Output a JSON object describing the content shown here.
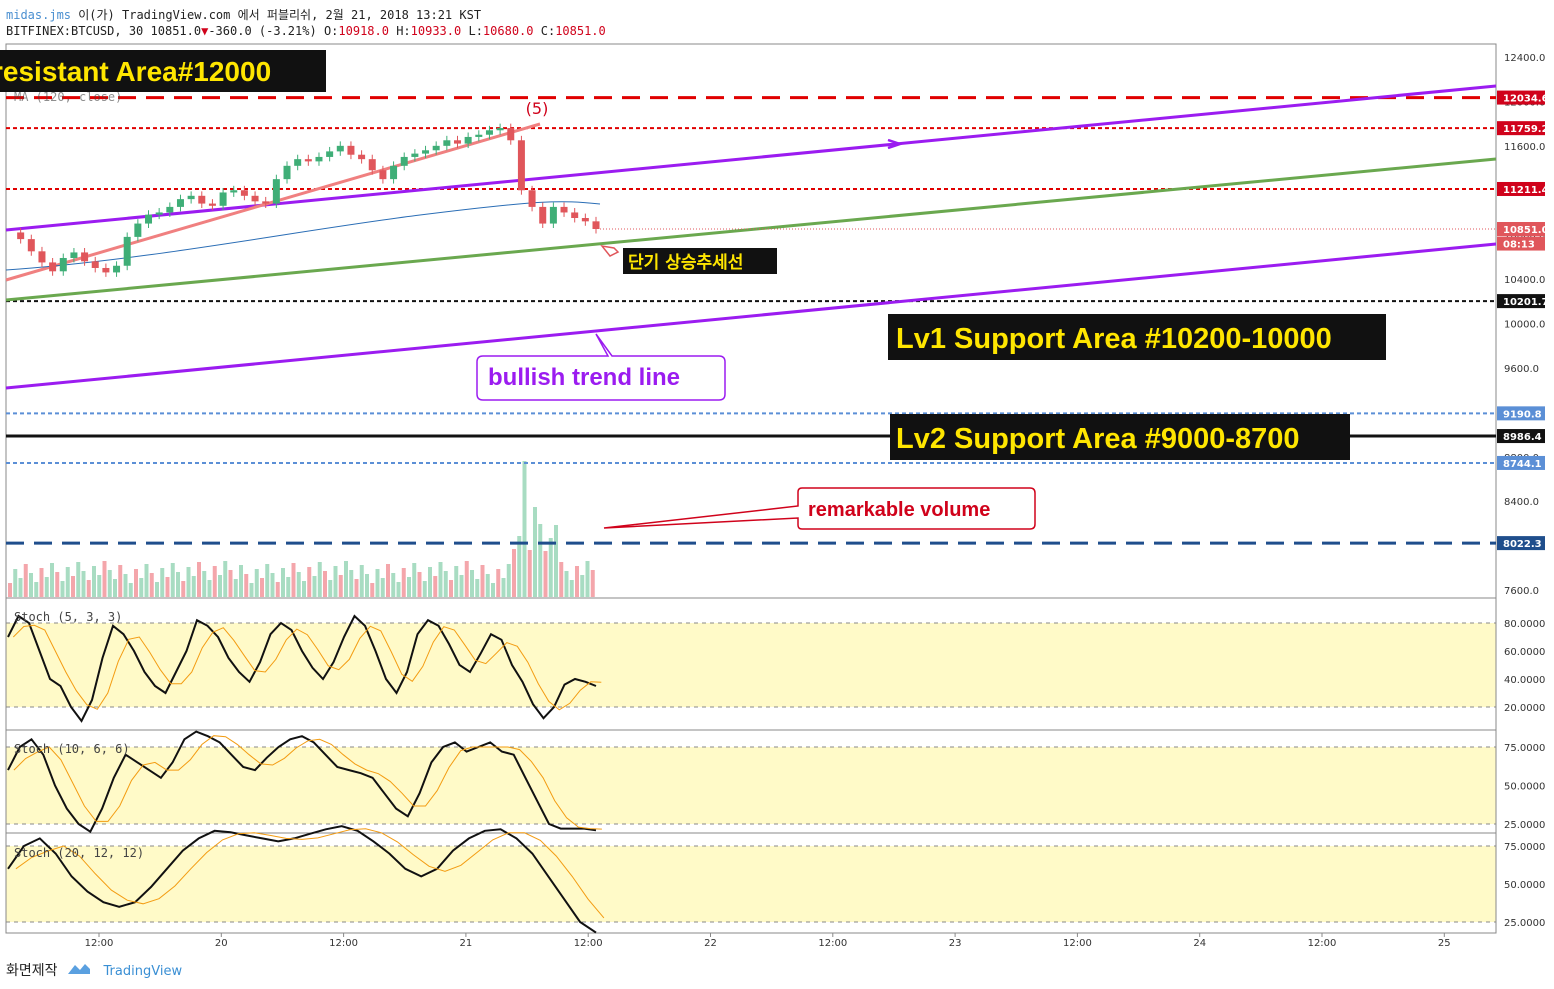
{
  "header": {
    "author": "midas.jms",
    "line1_rest": " 이(가) TradingView.com 에서 퍼블리쉬, 2월 21, 2018 13:21 KST",
    "symbol": "BITFINEX:BTCUSD, 30",
    "last": "10851.0",
    "change": "-360.0 (-3.21%)",
    "o_label": "O:",
    "o": "10918.0",
    "h_label": "H:",
    "h": "10933.0",
    "l_label": "L:",
    "l": "10680.0",
    "c_label": "C:",
    "c": "10851.0",
    "ma_label": "MA (120, close)"
  },
  "annotations": {
    "resistant": "resistant Area#12000",
    "wave": "(5)",
    "short_trend": "단기 상승추세선",
    "lv1": "Lv1 Support Area #10200-10000",
    "bullish": "bullish trend line",
    "lv2": "Lv2 Support Area #9000-8700",
    "volume": "remarkable volume"
  },
  "price_axis": {
    "ticks": [
      "12400.0",
      "12000.0",
      "11600.0",
      "11200.0",
      "10800.0",
      "10400.0",
      "10000.0",
      "9600.0",
      "9200.0",
      "8800.0",
      "8400.0",
      "8000.0",
      "7600.0"
    ],
    "tick_values": [
      12400,
      12000,
      11600,
      11200,
      10800,
      10400,
      10000,
      9600,
      9200,
      8800,
      8400,
      8000,
      7600
    ],
    "tags": [
      {
        "text": "12034.6",
        "value": 12034.6,
        "bg": "#d0021b",
        "fg": "#ffffff"
      },
      {
        "text": "11759.2",
        "value": 11759.2,
        "bg": "#d0021b",
        "fg": "#ffffff"
      },
      {
        "text": "11211.4",
        "value": 11211.4,
        "bg": "#d0021b",
        "fg": "#ffffff"
      },
      {
        "text": "10851.0",
        "value": 10851.0,
        "bg": "#e0565b",
        "fg": "#ffffff"
      },
      {
        "text": "08:13",
        "value": 10720,
        "bg": "#e0565b",
        "fg": "#ffffff"
      },
      {
        "text": "10201.7",
        "value": 10201.7,
        "bg": "#111111",
        "fg": "#ffffff"
      },
      {
        "text": "9190.8",
        "value": 9190.8,
        "bg": "#5b8fd6",
        "fg": "#ffffff"
      },
      {
        "text": "8986.4",
        "value": 8986.4,
        "bg": "#111111",
        "fg": "#ffffff"
      },
      {
        "text": "8744.1",
        "value": 8744.1,
        "bg": "#5b8fd6",
        "fg": "#ffffff"
      },
      {
        "text": "8022.3",
        "value": 8022.3,
        "bg": "#1f4e8c",
        "fg": "#ffffff"
      }
    ]
  },
  "time_axis": {
    "labels": [
      "12:00",
      "20",
      "12:00",
      "21",
      "12:00",
      "22",
      "12:00",
      "23",
      "12:00",
      "24",
      "12:00",
      "25"
    ]
  },
  "stoch_panes": [
    {
      "label": "Stoch (5, 3, 3)",
      "ticks": [
        "80.0000",
        "60.0000",
        "40.0000",
        "20.0000"
      ],
      "tick_values": [
        80,
        60,
        40,
        20
      ]
    },
    {
      "label": "Stoch (10, 6, 6)",
      "ticks": [
        "75.0000",
        "50.0000",
        "25.0000"
      ],
      "tick_values": [
        75,
        50,
        25
      ]
    },
    {
      "label": "Stoch (20, 12, 12)",
      "ticks": [
        "75.0000",
        "50.0000",
        "25.0000"
      ],
      "tick_values": [
        75,
        50,
        25
      ]
    }
  ],
  "colors": {
    "up": "#3fae77",
    "down": "#e0565b",
    "purple": "#9b1cf0",
    "green_line": "#6aa84f",
    "resist_red": "#e00000",
    "stoch_bg": "#fffac8",
    "label_bg": "#111111",
    "label_fg_yellow": "#ffe600"
  },
  "chart_data": {
    "type": "candlestick",
    "symbol": "BITFINEX:BTCUSD",
    "interval": "30",
    "ylim": [
      7550,
      12500
    ],
    "ohlc_last": {
      "open": 10918.0,
      "high": 10933.0,
      "low": 10680.0,
      "close": 10851.0
    },
    "close_path": [
      10820,
      10760,
      10650,
      10550,
      10470,
      10590,
      10640,
      10560,
      10500,
      10460,
      10520,
      10780,
      10900,
      10980,
      11000,
      11050,
      11120,
      11150,
      11080,
      11060,
      11180,
      11200,
      11150,
      11100,
      11080,
      11300,
      11420,
      11480,
      11460,
      11500,
      11550,
      11600,
      11520,
      11480,
      11380,
      11300,
      11420,
      11500,
      11530,
      11560,
      11600,
      11650,
      11620,
      11680,
      11700,
      11740,
      11760,
      11650,
      11200,
      11050,
      10900,
      11050,
      11000,
      10950,
      10920,
      10851
    ],
    "horizontal_levels": [
      {
        "value": 12034.6,
        "style": "dashed",
        "color": "#e00000"
      },
      {
        "value": 11759.2,
        "style": "dotted",
        "color": "#e00000"
      },
      {
        "value": 11211.4,
        "style": "dotted",
        "color": "#e00000"
      },
      {
        "value": 10201.7,
        "style": "dotted",
        "color": "#111111"
      },
      {
        "value": 9190.8,
        "style": "dotted",
        "color": "#5b8fd6"
      },
      {
        "value": 8986.4,
        "style": "solid",
        "color": "#111111"
      },
      {
        "value": 8744.1,
        "style": "dotted",
        "color": "#5b8fd6"
      },
      {
        "value": 8022.3,
        "style": "dashed",
        "color": "#1f4e8c"
      }
    ],
    "stoch_5_3_3": [
      70,
      85,
      80,
      60,
      40,
      35,
      20,
      10,
      25,
      55,
      78,
      72,
      60,
      45,
      35,
      30,
      45,
      60,
      82,
      78,
      70,
      55,
      45,
      38,
      52,
      72,
      80,
      75,
      60,
      48,
      40,
      52,
      70,
      85,
      78,
      60,
      40,
      30,
      45,
      72,
      82,
      78,
      65,
      50,
      45,
      58,
      72,
      68,
      50,
      38,
      22,
      12,
      20,
      36,
      40,
      38,
      35
    ],
    "stoch_10_6_6": [
      60,
      75,
      80,
      70,
      50,
      35,
      25,
      20,
      35,
      55,
      70,
      65,
      60,
      55,
      65,
      80,
      85,
      82,
      78,
      70,
      62,
      60,
      68,
      75,
      80,
      82,
      78,
      70,
      62,
      60,
      58,
      55,
      45,
      35,
      30,
      45,
      65,
      75,
      78,
      72,
      75,
      78,
      72,
      70,
      55,
      40,
      25,
      22,
      22,
      22,
      21
    ],
    "stoch_20_12_12": [
      60,
      75,
      80,
      70,
      55,
      45,
      38,
      35,
      38,
      48,
      60,
      72,
      80,
      85,
      84,
      82,
      80,
      78,
      80,
      83,
      86,
      88,
      85,
      78,
      70,
      60,
      55,
      60,
      72,
      80,
      85,
      86,
      80,
      70,
      55,
      40,
      25,
      18
    ]
  }
}
